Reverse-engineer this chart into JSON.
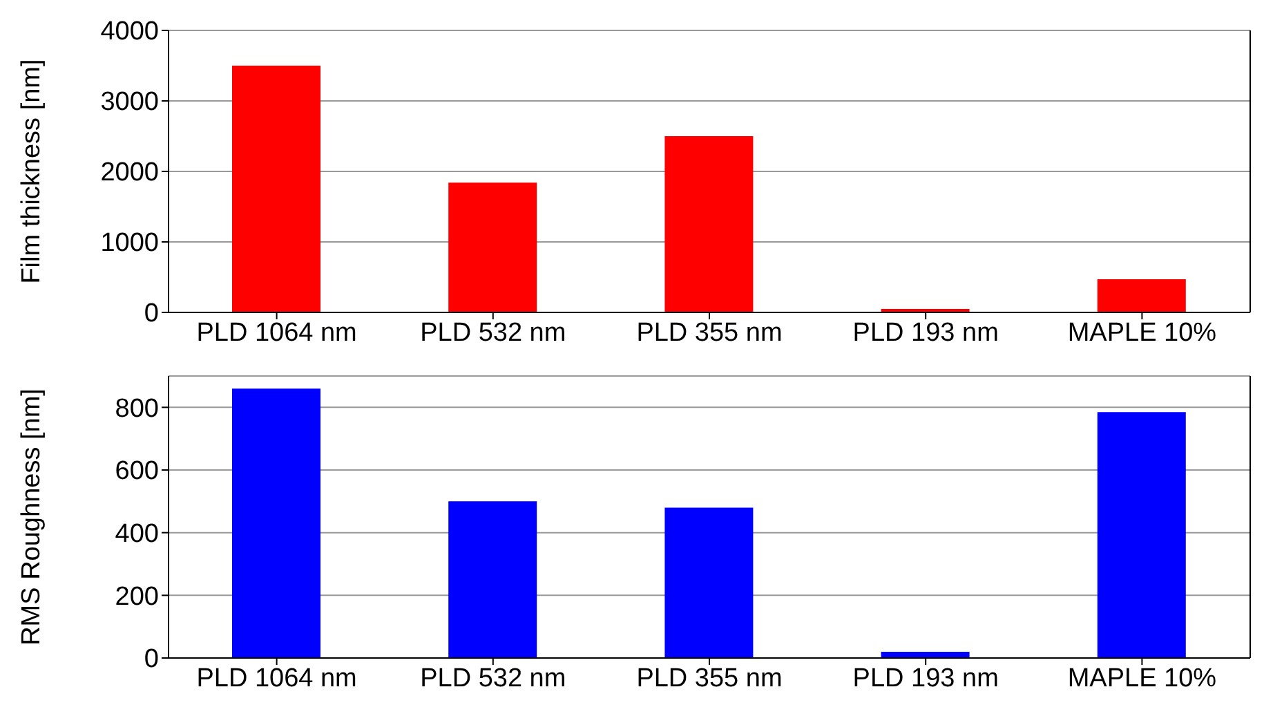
{
  "chart_data": [
    {
      "type": "bar",
      "ylabel": "Film thickness [nm]",
      "categories": [
        "PLD 1064 nm",
        "PLD 532 nm",
        "PLD 355 nm",
        "PLD 193 nm",
        "MAPLE 10%"
      ],
      "values": [
        3500,
        1840,
        2500,
        50,
        470
      ],
      "color": "#ff0000",
      "ylim": [
        0,
        4000
      ],
      "yticks": [
        0,
        1000,
        2000,
        3000,
        4000
      ],
      "grid": "y"
    },
    {
      "type": "bar",
      "ylabel": "RMS Roughness [nm]",
      "categories": [
        "PLD 1064 nm",
        "PLD 532 nm",
        "PLD 355 nm",
        "PLD 193 nm",
        "MAPLE 10%"
      ],
      "values": [
        860,
        500,
        480,
        20,
        785
      ],
      "color": "#0000ff",
      "ylim": [
        0,
        900
      ],
      "yticks": [
        0,
        200,
        400,
        600,
        800
      ],
      "grid": "y"
    }
  ]
}
